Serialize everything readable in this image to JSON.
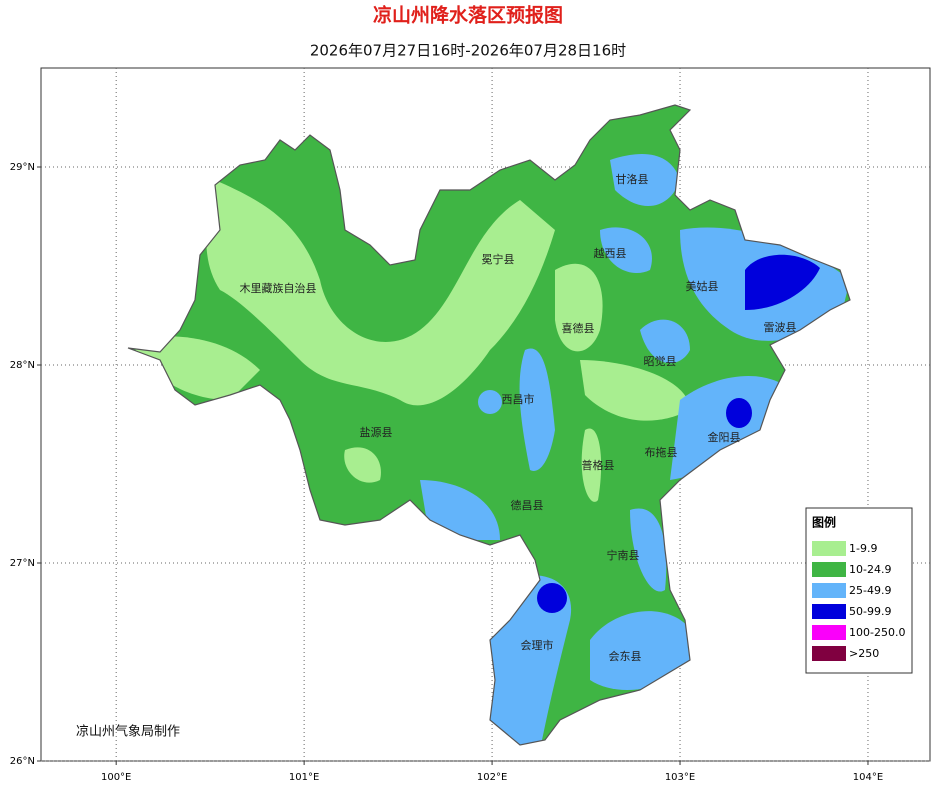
{
  "header": {
    "title": "凉山州降水落区预报图",
    "subtitle": "2026年07月27日16时-2026年07月28日16时"
  },
  "map": {
    "xlim": [
      99.6,
      104.33
    ],
    "ylim": [
      26,
      29.5
    ],
    "xticks": [
      {
        "value": 100,
        "label": "100°E"
      },
      {
        "value": 101,
        "label": "101°E"
      },
      {
        "value": 102,
        "label": "102°E"
      },
      {
        "value": 103,
        "label": "103°E"
      },
      {
        "value": 104,
        "label": "104°E"
      }
    ],
    "yticks": [
      {
        "value": 26,
        "label": "26°N"
      },
      {
        "value": 27,
        "label": "27°N"
      },
      {
        "value": 28,
        "label": "28°N"
      },
      {
        "value": 29,
        "label": "29°N"
      }
    ],
    "grid": true
  },
  "places": [
    "甘洛县",
    "越西县",
    "冕宁县",
    "美姑县",
    "木里藏族自治县",
    "喜德县",
    "雷波县",
    "昭觉县",
    "西昌市",
    "金阳县",
    "盐源县",
    "布拖县",
    "普格县",
    "德昌县",
    "宁南县",
    "会理市",
    "会东县"
  ],
  "legend": {
    "title": "图例",
    "items": [
      {
        "label": "1-9.9",
        "color": "#a8ee90"
      },
      {
        "label": "10-24.9",
        "color": "#3fb544"
      },
      {
        "label": "25-49.9",
        "color": "#63b4fa"
      },
      {
        "label": "50-99.9",
        "color": "#0000dc"
      },
      {
        "label": "100-250.0",
        "color": "#fa00fa"
      },
      {
        "label": ">250",
        "color": "#800040"
      }
    ]
  },
  "credit": "凉山州气象局制作"
}
